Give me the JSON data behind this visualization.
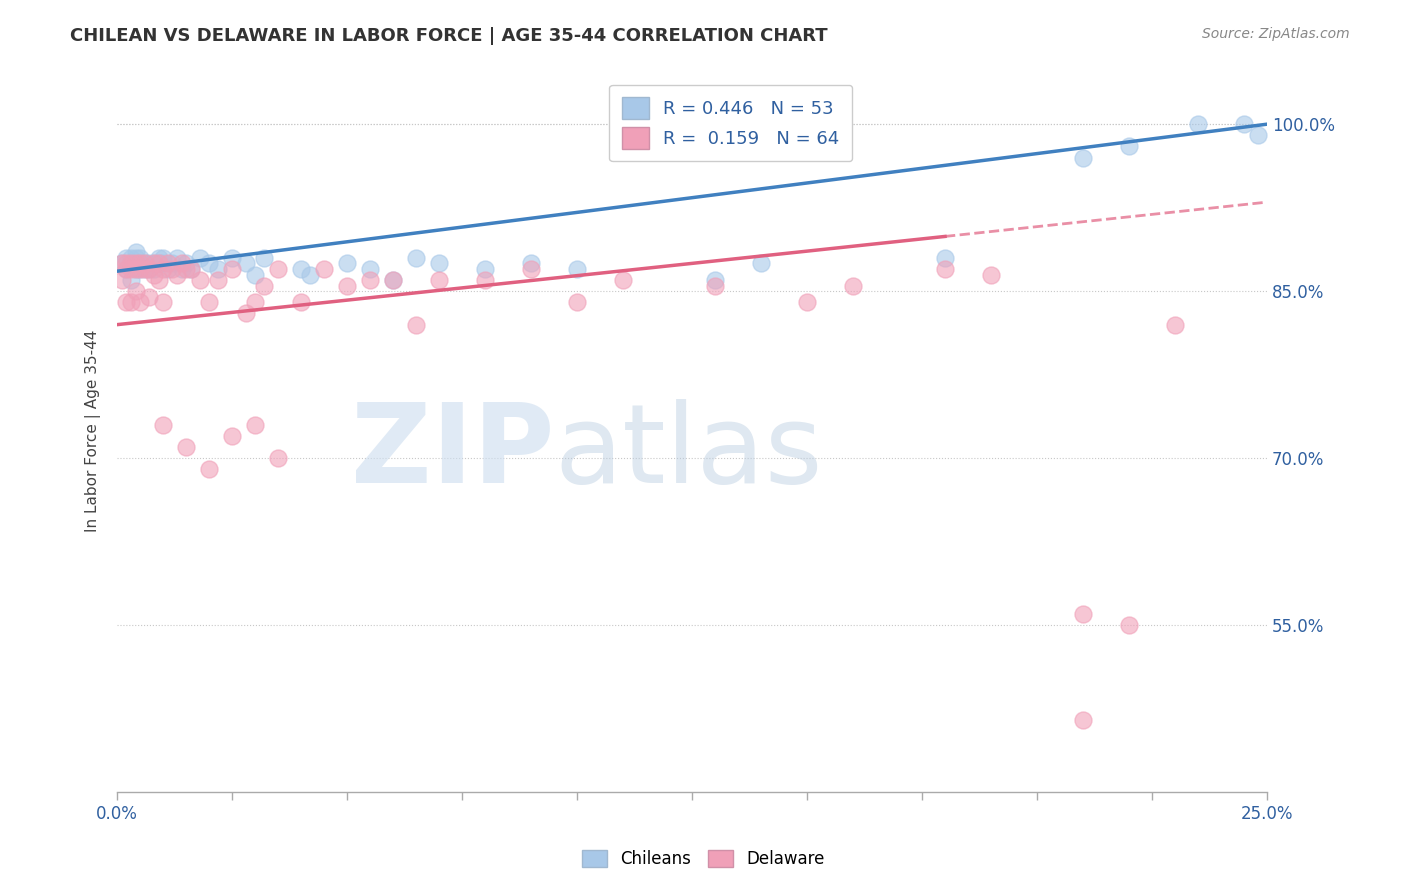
{
  "title": "CHILEAN VS DELAWARE IN LABOR FORCE | AGE 35-44 CORRELATION CHART",
  "source": "Source: ZipAtlas.com",
  "ylabel": "In Labor Force | Age 35-44",
  "xlim": [
    0.0,
    0.25
  ],
  "ylim": [
    0.4,
    1.05
  ],
  "ytick_vals": [
    0.55,
    0.7,
    0.85,
    1.0
  ],
  "ytick_labels": [
    "55.0%",
    "70.0%",
    "85.0%",
    "100.0%"
  ],
  "color_blue": "#a8c8e8",
  "color_pink": "#f0a0b8",
  "line_blue": "#4080c0",
  "line_pink": "#e06080",
  "chileans_x": [
    0.001,
    0.002,
    0.002,
    0.003,
    0.003,
    0.003,
    0.004,
    0.004,
    0.004,
    0.005,
    0.005,
    0.005,
    0.006,
    0.006,
    0.007,
    0.007,
    0.008,
    0.008,
    0.009,
    0.009,
    0.01,
    0.01,
    0.011,
    0.012,
    0.013,
    0.014,
    0.015,
    0.016,
    0.018,
    0.02,
    0.022,
    0.025,
    0.028,
    0.03,
    0.032,
    0.04,
    0.042,
    0.05,
    0.055,
    0.06,
    0.065,
    0.07,
    0.08,
    0.09,
    0.1,
    0.13,
    0.14,
    0.18,
    0.21,
    0.22,
    0.235,
    0.245,
    0.248
  ],
  "chileans_y": [
    0.875,
    0.88,
    0.87,
    0.88,
    0.875,
    0.86,
    0.885,
    0.87,
    0.88,
    0.875,
    0.88,
    0.87,
    0.87,
    0.875,
    0.87,
    0.875,
    0.87,
    0.875,
    0.88,
    0.875,
    0.875,
    0.88,
    0.87,
    0.875,
    0.88,
    0.87,
    0.875,
    0.87,
    0.88,
    0.875,
    0.87,
    0.88,
    0.875,
    0.865,
    0.88,
    0.87,
    0.865,
    0.875,
    0.87,
    0.86,
    0.88,
    0.875,
    0.87,
    0.875,
    0.87,
    0.86,
    0.875,
    0.88,
    0.97,
    0.98,
    1.0,
    1.0,
    0.99
  ],
  "delaware_x": [
    0.001,
    0.001,
    0.002,
    0.002,
    0.002,
    0.003,
    0.003,
    0.003,
    0.004,
    0.004,
    0.004,
    0.005,
    0.005,
    0.005,
    0.006,
    0.006,
    0.007,
    0.007,
    0.008,
    0.008,
    0.009,
    0.009,
    0.01,
    0.01,
    0.011,
    0.012,
    0.013,
    0.014,
    0.015,
    0.016,
    0.018,
    0.02,
    0.022,
    0.025,
    0.028,
    0.03,
    0.032,
    0.035,
    0.04,
    0.045,
    0.05,
    0.055,
    0.06,
    0.065,
    0.07,
    0.08,
    0.09,
    0.1,
    0.11,
    0.13,
    0.15,
    0.16,
    0.18,
    0.19,
    0.21,
    0.21,
    0.22,
    0.23,
    0.01,
    0.015,
    0.02,
    0.025,
    0.03,
    0.035
  ],
  "delaware_y": [
    0.875,
    0.86,
    0.87,
    0.875,
    0.84,
    0.875,
    0.87,
    0.84,
    0.87,
    0.875,
    0.85,
    0.87,
    0.875,
    0.84,
    0.875,
    0.87,
    0.87,
    0.845,
    0.875,
    0.865,
    0.86,
    0.875,
    0.87,
    0.84,
    0.875,
    0.87,
    0.865,
    0.875,
    0.87,
    0.87,
    0.86,
    0.84,
    0.86,
    0.87,
    0.83,
    0.84,
    0.855,
    0.87,
    0.84,
    0.87,
    0.855,
    0.86,
    0.86,
    0.82,
    0.86,
    0.86,
    0.87,
    0.84,
    0.86,
    0.855,
    0.84,
    0.855,
    0.87,
    0.865,
    0.56,
    0.465,
    0.55,
    0.82,
    0.73,
    0.71,
    0.69,
    0.72,
    0.73,
    0.7
  ],
  "watermark_zip": "ZIP",
  "watermark_atlas": "atlas",
  "legend_line1": "R = 0.446   N = 53",
  "legend_line2": "R =  0.159   N = 64"
}
